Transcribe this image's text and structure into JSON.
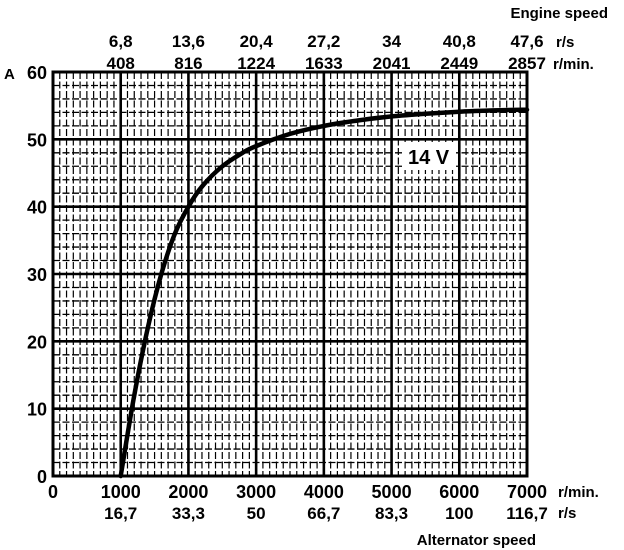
{
  "chart_data": {
    "type": "line",
    "title": "",
    "xlabel": "Alternator speed",
    "ylabel": "A",
    "xlim": [
      0,
      7000
    ],
    "ylim": [
      0,
      60
    ],
    "grid": true,
    "x_ticks": [
      0,
      1000,
      2000,
      3000,
      4000,
      5000,
      6000,
      7000
    ],
    "x_tick_labels": [
      "0",
      "1000",
      "2000",
      "3000",
      "4000",
      "5000",
      "6000",
      "7000"
    ],
    "x_unit": "r/min.",
    "x_sub_labels": [
      "16,7",
      "33,3",
      "50",
      "66,7",
      "83,3",
      "100",
      "116,7"
    ],
    "x_sub_unit": "r/s",
    "y_ticks": [
      0,
      10,
      20,
      30,
      40,
      50,
      60
    ],
    "y_tick_labels": [
      "0",
      "10",
      "20",
      "30",
      "40",
      "50",
      "60"
    ],
    "top_axis": {
      "title": "Engine speed",
      "rs_labels": [
        "6,8",
        "13,6",
        "20,4",
        "27,2",
        "34",
        "40,8",
        "47,6"
      ],
      "rs_unit": "r/s",
      "rpm_labels": [
        "408",
        "816",
        "1224",
        "1633",
        "2041",
        "2449",
        "2857"
      ],
      "rpm_unit": "r/min."
    },
    "annotations": [
      {
        "text": "14 V"
      }
    ],
    "series": [
      {
        "name": "14 V",
        "x": [
          1000,
          1200,
          1400,
          1600,
          1800,
          2000,
          2200,
          2500,
          2800,
          3000,
          3500,
          4000,
          4500,
          5000,
          5500,
          6000,
          6500,
          7000
        ],
        "y": [
          0,
          12,
          22,
          30,
          36,
          40,
          43,
          46,
          48,
          49,
          50.8,
          52,
          52.8,
          53.4,
          53.8,
          54.1,
          54.3,
          54.4
        ]
      }
    ]
  }
}
